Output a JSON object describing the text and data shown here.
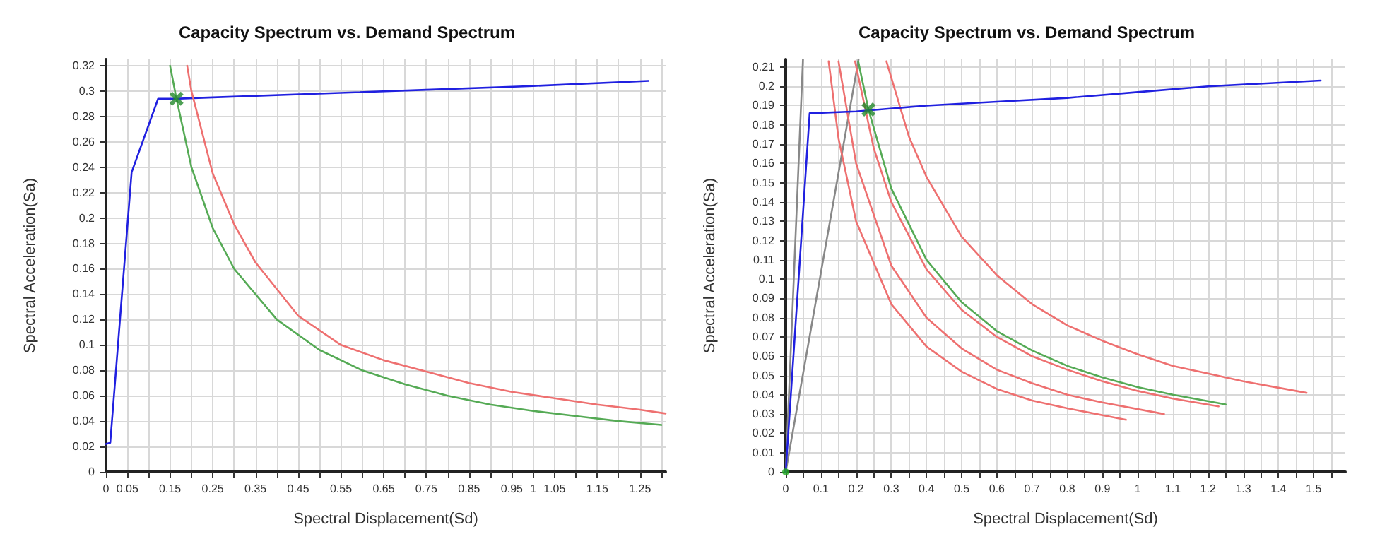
{
  "chart_data": [
    {
      "type": "line",
      "title": "Capacity Spectrum vs. Demand Spectrum",
      "xlabel": "Spectral Displacement(Sd)",
      "ylabel": "Spectral Acceleration(Sa)",
      "xlim": [
        0,
        1.31
      ],
      "ylim": [
        0,
        0.325
      ],
      "grid": true,
      "marker": "none",
      "xticks": [
        0,
        0.05,
        {
          "value": 0.1,
          "label": null
        },
        0.15,
        {
          "value": 0.2,
          "label": null
        },
        0.25,
        {
          "value": 0.3,
          "label": null
        },
        0.35,
        {
          "value": 0.4,
          "label": null
        },
        0.45,
        {
          "value": 0.5,
          "label": null
        },
        0.55,
        {
          "value": 0.6,
          "label": null
        },
        0.65,
        {
          "value": 0.7,
          "label": null
        },
        0.75,
        {
          "value": 0.8,
          "label": null
        },
        0.85,
        {
          "value": 0.9,
          "label": null
        },
        0.95,
        1,
        1.05,
        {
          "value": 1.1,
          "label": null
        },
        1.15,
        {
          "value": 1.2,
          "label": null
        },
        1.25,
        {
          "value": 1.3,
          "label": null
        }
      ],
      "yticks": [
        0,
        0.02,
        0.04,
        0.06,
        0.08,
        0.1,
        0.12,
        0.14,
        0.16,
        0.18,
        0.2,
        0.22,
        0.24,
        0.26,
        0.28,
        0.3,
        0.32
      ],
      "series": [
        {
          "color": "#2020e0",
          "x": [
            0,
            0.01,
            0.06,
            0.122,
            0.17,
            0.25,
            0.5,
            0.75,
            1.0,
            1.27
          ],
          "values": [
            0.022,
            0.023,
            0.236,
            0.294,
            0.294,
            0.295,
            0.298,
            0.301,
            0.304,
            0.308
          ]
        },
        {
          "color": "#ee7070",
          "x": [
            0.19,
            0.2,
            0.25,
            0.3,
            0.35,
            0.45,
            0.55,
            0.65,
            0.75,
            0.85,
            0.95,
            1.05,
            1.15,
            1.25,
            1.31
          ],
          "values": [
            0.32,
            0.3,
            0.235,
            0.195,
            0.165,
            0.123,
            0.1,
            0.088,
            0.079,
            0.07,
            0.063,
            0.058,
            0.053,
            0.049,
            0.046
          ]
        },
        {
          "color": "#55aa55",
          "x": [
            0.15,
            0.165,
            0.2,
            0.25,
            0.3,
            0.4,
            0.5,
            0.6,
            0.7,
            0.8,
            0.9,
            1.0,
            1.1,
            1.2,
            1.3
          ],
          "values": [
            0.32,
            0.294,
            0.24,
            0.192,
            0.16,
            0.12,
            0.096,
            0.08,
            0.069,
            0.06,
            0.053,
            0.048,
            0.044,
            0.04,
            0.037
          ]
        },
        {
          "type": "scatter",
          "marker": "cross",
          "color": "#22882a",
          "x": [
            0.165
          ],
          "values": [
            0.294
          ]
        }
      ]
    },
    {
      "type": "line",
      "title": "Capacity Spectrum vs. Demand Spectrum",
      "xlabel": "Spectral Displacement(Sd)",
      "ylabel": "Spectral Acceleration(Sa)",
      "xlim": [
        0,
        1.59
      ],
      "ylim": [
        0,
        0.214
      ],
      "grid": true,
      "marker": "none",
      "xticks": [
        0,
        {
          "value": 0.05,
          "label": null
        },
        0.1,
        {
          "value": 0.15,
          "label": null
        },
        0.2,
        {
          "value": 0.25,
          "label": null
        },
        0.3,
        {
          "value": 0.35,
          "label": null
        },
        0.4,
        {
          "value": 0.45,
          "label": null
        },
        0.5,
        {
          "value": 0.55,
          "label": null
        },
        0.6,
        {
          "value": 0.65,
          "label": null
        },
        0.7,
        {
          "value": 0.75,
          "label": null
        },
        0.8,
        {
          "value": 0.85,
          "label": null
        },
        0.9,
        {
          "value": 0.95,
          "label": null
        },
        1,
        {
          "value": 1.05,
          "label": null
        },
        1.1,
        {
          "value": 1.15,
          "label": null
        },
        1.2,
        {
          "value": 1.25,
          "label": null
        },
        1.3,
        {
          "value": 1.35,
          "label": null
        },
        1.4,
        {
          "value": 1.45,
          "label": null
        },
        1.5,
        {
          "value": 1.55,
          "label": null
        }
      ],
      "yticks": [
        0,
        0.01,
        0.02,
        0.03,
        0.04,
        0.05,
        0.06,
        0.07,
        0.08,
        0.09,
        0.1,
        0.11,
        0.12,
        0.13,
        0.14,
        0.15,
        0.16,
        0.17,
        0.18,
        0.19,
        0.2,
        0.21
      ],
      "series": [
        {
          "color": "#888888",
          "x": [
            0,
            0.049
          ],
          "values": [
            0,
            0.214
          ]
        },
        {
          "color": "#888888",
          "x": [
            0,
            0.207
          ],
          "values": [
            0,
            0.214
          ]
        },
        {
          "color": "#ee7070",
          "x": [
            0.122,
            0.15,
            0.2,
            0.3,
            0.4,
            0.5,
            0.6,
            0.7,
            0.8,
            0.967
          ],
          "values": [
            0.213,
            0.173,
            0.13,
            0.087,
            0.065,
            0.052,
            0.043,
            0.037,
            0.033,
            0.027
          ]
        },
        {
          "color": "#ee7070",
          "x": [
            0.15,
            0.2,
            0.3,
            0.4,
            0.5,
            0.6,
            0.7,
            0.8,
            0.9,
            1.075
          ],
          "values": [
            0.213,
            0.16,
            0.107,
            0.08,
            0.064,
            0.053,
            0.046,
            0.04,
            0.036,
            0.03
          ]
        },
        {
          "color": "#ee7070",
          "x": [
            0.197,
            0.25,
            0.3,
            0.4,
            0.5,
            0.6,
            0.7,
            0.8,
            0.9,
            1.0,
            1.1,
            1.23
          ],
          "values": [
            0.213,
            0.168,
            0.14,
            0.105,
            0.084,
            0.07,
            0.06,
            0.053,
            0.047,
            0.042,
            0.038,
            0.034
          ]
        },
        {
          "color": "#55aa55",
          "x": [
            0.206,
            0.235,
            0.3,
            0.4,
            0.5,
            0.6,
            0.7,
            0.8,
            0.9,
            1.0,
            1.1,
            1.25
          ],
          "values": [
            0.213,
            0.188,
            0.147,
            0.11,
            0.088,
            0.073,
            0.063,
            0.055,
            0.049,
            0.044,
            0.04,
            0.035
          ]
        },
        {
          "color": "#ee7070",
          "x": [
            0.286,
            0.35,
            0.4,
            0.5,
            0.6,
            0.7,
            0.8,
            0.9,
            1.0,
            1.1,
            1.2,
            1.3,
            1.48
          ],
          "values": [
            0.213,
            0.174,
            0.153,
            0.122,
            0.102,
            0.087,
            0.076,
            0.068,
            0.061,
            0.055,
            0.051,
            0.047,
            0.041
          ]
        },
        {
          "color": "#2020e0",
          "x": [
            0,
            0.068,
            0.2,
            0.4,
            0.6,
            0.8,
            1.0,
            1.2,
            1.52
          ],
          "values": [
            0,
            0.186,
            0.187,
            0.19,
            0.192,
            0.194,
            0.197,
            0.2,
            0.203
          ]
        },
        {
          "type": "scatter",
          "marker": "cross",
          "color": "#22882a",
          "x": [
            0.235
          ],
          "values": [
            0.188
          ]
        },
        {
          "type": "scatter",
          "marker": "circle",
          "color": "#22aa22",
          "x": [
            0
          ],
          "values": [
            0
          ]
        }
      ]
    }
  ]
}
